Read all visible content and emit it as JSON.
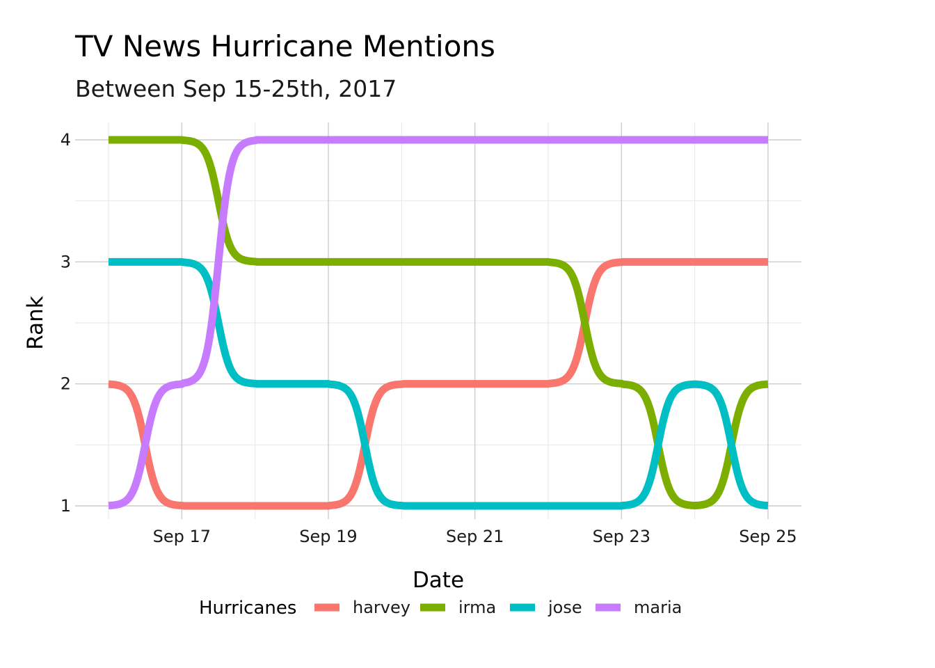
{
  "chart_data": {
    "type": "line",
    "title": "TV News Hurricane Mentions",
    "subtitle": "Between Sep 15-25th, 2017",
    "xlabel": "Date",
    "ylabel": "Rank",
    "x": [
      "2017-09-16",
      "2017-09-17",
      "2017-09-18",
      "2017-09-19",
      "2017-09-20",
      "2017-09-21",
      "2017-09-22",
      "2017-09-23",
      "2017-09-24",
      "2017-09-25"
    ],
    "x_ticks": [
      "Sep 17",
      "Sep 19",
      "Sep 21",
      "Sep 23",
      "Sep 25"
    ],
    "y_ticks": [
      "1",
      "2",
      "3",
      "4"
    ],
    "ylim": [
      1,
      4
    ],
    "xlim": [
      "2017-09-16",
      "2017-09-25"
    ],
    "grid": true,
    "legend": {
      "title": "Hurricanes",
      "position": "bottom"
    },
    "series": [
      {
        "name": "harvey",
        "color": "#F8766D",
        "values": [
          2,
          1,
          1,
          1,
          2,
          2,
          2,
          3,
          3,
          3
        ]
      },
      {
        "name": "irma",
        "color": "#7CAE00",
        "values": [
          4,
          4,
          3,
          3,
          3,
          3,
          3,
          2,
          1,
          2
        ]
      },
      {
        "name": "jose",
        "color": "#00BFC4",
        "values": [
          3,
          3,
          2,
          2,
          1,
          1,
          1,
          1,
          2,
          1
        ]
      },
      {
        "name": "maria",
        "color": "#C77CFF",
        "values": [
          1,
          2,
          4,
          4,
          4,
          4,
          4,
          4,
          4,
          4
        ]
      }
    ]
  }
}
